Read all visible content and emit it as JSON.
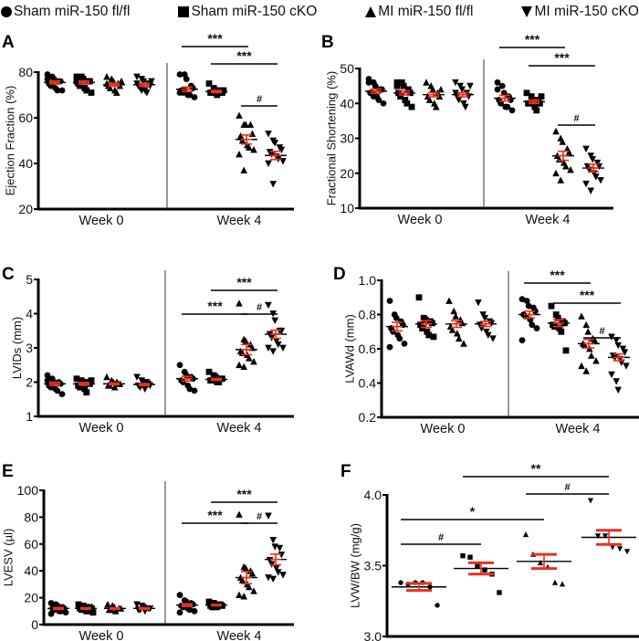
{
  "legend": [
    {
      "label": "Sham miR-150 fl/fl",
      "marker": "circle"
    },
    {
      "label": "Sham miR-150 cKO",
      "marker": "square"
    },
    {
      "label": "MI miR-150 fl/fl",
      "marker": "triangle-up"
    },
    {
      "label": "MI miR-150 cKO",
      "marker": "triangle-down"
    }
  ],
  "colors": {
    "points": "#000000",
    "mean_sem": "#e8321e",
    "mean_line": "#000000"
  },
  "chart_data": [
    {
      "panel": "A",
      "type": "scatter",
      "ylabel": "Ejection Fraction (%)",
      "ylim": [
        20,
        80
      ],
      "yticks": [
        20,
        40,
        60,
        80
      ],
      "xgroups": [
        "Week 0",
        "Week 4"
      ],
      "groups": [
        {
          "marker": "circle",
          "mean": 75.5,
          "sem": 0.7,
          "points": [
            79,
            78,
            77,
            76,
            76,
            75,
            74,
            73,
            72,
            72,
            77,
            74
          ]
        },
        {
          "marker": "square",
          "mean": 75.5,
          "sem": 0.7,
          "points": [
            78,
            77,
            77,
            76,
            76,
            75,
            74,
            73,
            72,
            71,
            76,
            78
          ]
        },
        {
          "marker": "triangle-up",
          "mean": 74.5,
          "sem": 0.7,
          "points": [
            78,
            77,
            76,
            75,
            74,
            74,
            73,
            72,
            71,
            76,
            75
          ]
        },
        {
          "marker": "triangle-down",
          "mean": 74.5,
          "sem": 0.7,
          "points": [
            78,
            77,
            76,
            75,
            74,
            74,
            73,
            72,
            71,
            76,
            75,
            72
          ]
        },
        {
          "marker": "circle",
          "mean": 72.5,
          "sem": 1.0,
          "points": [
            79,
            79,
            77,
            74,
            73,
            72,
            71,
            70,
            70,
            69,
            71,
            72
          ]
        },
        {
          "marker": "square",
          "mean": 71.5,
          "sem": 0.5,
          "points": [
            75,
            73,
            72,
            72,
            71,
            71,
            71,
            70,
            71,
            72
          ]
        },
        {
          "marker": "triangle-up",
          "mean": 50.5,
          "sem": 2.0,
          "points": [
            61,
            57,
            57,
            57,
            53,
            52,
            50,
            48,
            47,
            46,
            44,
            37
          ]
        },
        {
          "marker": "triangle-down",
          "mean": 43.5,
          "sem": 1.8,
          "points": [
            53,
            50,
            49,
            47,
            46,
            45,
            44,
            43,
            42,
            41,
            40,
            31
          ]
        }
      ],
      "brackets": [
        {
          "from": 5,
          "to": 7,
          "label": "***"
        },
        {
          "from": 4,
          "to": 6,
          "label": "***"
        },
        {
          "from": 6,
          "to": 7,
          "label": "#"
        }
      ]
    },
    {
      "panel": "B",
      "type": "scatter",
      "ylabel": "Fractional Shortening (%)",
      "ylim": [
        10,
        50
      ],
      "yticks": [
        10,
        20,
        30,
        40,
        50
      ],
      "xgroups": [
        "Week 0",
        "Week 4"
      ],
      "groups": [
        {
          "marker": "circle",
          "mean": 43.5,
          "sem": 0.6,
          "points": [
            47,
            46,
            45,
            44,
            44,
            43,
            43,
            42,
            41,
            40,
            46,
            42
          ]
        },
        {
          "marker": "square",
          "mean": 43,
          "sem": 0.6,
          "points": [
            46,
            46,
            45,
            44,
            43,
            43,
            42,
            41,
            40,
            39,
            45
          ]
        },
        {
          "marker": "triangle-up",
          "mean": 42.5,
          "sem": 0.6,
          "points": [
            46,
            45,
            44,
            43,
            42,
            42,
            41,
            40,
            39,
            44
          ]
        },
        {
          "marker": "triangle-down",
          "mean": 42.5,
          "sem": 0.6,
          "points": [
            46,
            45,
            44,
            43,
            42,
            42,
            41,
            40,
            39,
            45,
            43
          ]
        },
        {
          "marker": "circle",
          "mean": 41.5,
          "sem": 0.8,
          "points": [
            46,
            45,
            43,
            42,
            41,
            41,
            40,
            39,
            39,
            38,
            44
          ]
        },
        {
          "marker": "square",
          "mean": 40.5,
          "sem": 0.5,
          "points": [
            43,
            42,
            41,
            41,
            40,
            40,
            40,
            39,
            38,
            42
          ]
        },
        {
          "marker": "triangle-up",
          "mean": 25,
          "sem": 1.3,
          "points": [
            32,
            30,
            29,
            27,
            26,
            25,
            24,
            23,
            22,
            21,
            20,
            18
          ]
        },
        {
          "marker": "triangle-down",
          "mean": 21.5,
          "sem": 1.1,
          "points": [
            27,
            25,
            24,
            23,
            22,
            22,
            21,
            20,
            19,
            18,
            17,
            15
          ]
        }
      ],
      "brackets": [
        {
          "from": 5,
          "to": 7,
          "label": "***"
        },
        {
          "from": 4,
          "to": 6,
          "label": "***"
        },
        {
          "from": 6,
          "to": 7,
          "label": "#"
        }
      ]
    },
    {
      "panel": "C",
      "type": "scatter",
      "ylabel": "LVIDs (mm)",
      "ylim": [
        1,
        5
      ],
      "yticks": [
        1,
        2,
        3,
        4,
        5
      ],
      "xgroups": [
        "Week 0",
        "Week 4"
      ],
      "groups": [
        {
          "marker": "circle",
          "mean": 1.95,
          "sem": 0.05,
          "points": [
            2.2,
            2.1,
            2.0,
            2.0,
            1.95,
            1.9,
            1.85,
            1.8,
            1.75,
            1.65,
            2.05
          ]
        },
        {
          "marker": "square",
          "mean": 1.95,
          "sem": 0.04,
          "points": [
            2.1,
            2.05,
            2.0,
            2.0,
            1.95,
            1.9,
            1.85,
            1.8,
            1.7,
            2.05
          ]
        },
        {
          "marker": "triangle-up",
          "mean": 1.95,
          "sem": 0.03,
          "points": [
            2.15,
            2.05,
            2.0,
            1.95,
            1.95,
            1.9,
            1.9,
            1.85,
            2.0
          ]
        },
        {
          "marker": "triangle-down",
          "mean": 1.93,
          "sem": 0.03,
          "points": [
            2.15,
            2.05,
            2.0,
            1.95,
            1.9,
            1.9,
            1.85,
            1.8,
            2.0
          ]
        },
        {
          "marker": "circle",
          "mean": 2.1,
          "sem": 0.07,
          "points": [
            2.5,
            2.3,
            2.2,
            2.15,
            2.1,
            2.05,
            2.0,
            1.9,
            1.8,
            1.75
          ]
        },
        {
          "marker": "square",
          "mean": 2.08,
          "sem": 0.03,
          "points": [
            2.3,
            2.2,
            2.15,
            2.1,
            2.1,
            2.05,
            2.05,
            2.0,
            2.0
          ]
        },
        {
          "marker": "triangle-up",
          "mean": 2.95,
          "sem": 0.15,
          "points": [
            4.3,
            3.25,
            3.2,
            3.1,
            3.0,
            2.9,
            2.85,
            2.8,
            2.7,
            2.6,
            2.5,
            2.45
          ]
        },
        {
          "marker": "triangle-down",
          "mean": 3.4,
          "sem": 0.12,
          "points": [
            4.25,
            4.0,
            3.8,
            3.5,
            3.5,
            3.4,
            3.3,
            3.2,
            3.1,
            3.0,
            3.0,
            2.9
          ]
        }
      ],
      "brackets": [
        {
          "from": 4,
          "to": 6,
          "label": "***"
        },
        {
          "from": 5,
          "to": 7,
          "label": "***"
        },
        {
          "from": 6,
          "to": 7,
          "label": "#"
        }
      ]
    },
    {
      "panel": "D",
      "type": "scatter",
      "ylabel": "LVAWd (mm)",
      "ylim": [
        0.2,
        1.0
      ],
      "yticks": [
        0.2,
        0.4,
        0.6,
        0.8,
        1.0
      ],
      "xgroups": [
        "Week 0",
        "Week 4"
      ],
      "groups": [
        {
          "marker": "circle",
          "mean": 0.73,
          "sem": 0.025,
          "points": [
            0.88,
            0.8,
            0.78,
            0.76,
            0.74,
            0.72,
            0.7,
            0.68,
            0.66,
            0.63,
            0.61
          ]
        },
        {
          "marker": "square",
          "mean": 0.745,
          "sem": 0.02,
          "points": [
            0.9,
            0.78,
            0.77,
            0.76,
            0.75,
            0.74,
            0.72,
            0.7,
            0.68,
            0.67
          ]
        },
        {
          "marker": "triangle-up",
          "mean": 0.745,
          "sem": 0.02,
          "points": [
            0.88,
            0.82,
            0.79,
            0.77,
            0.75,
            0.73,
            0.71,
            0.69,
            0.66,
            0.63
          ]
        },
        {
          "marker": "triangle-down",
          "mean": 0.745,
          "sem": 0.015,
          "points": [
            0.87,
            0.8,
            0.78,
            0.76,
            0.75,
            0.74,
            0.72,
            0.7,
            0.68,
            0.66
          ]
        },
        {
          "marker": "circle",
          "mean": 0.8,
          "sem": 0.02,
          "points": [
            0.89,
            0.88,
            0.85,
            0.84,
            0.82,
            0.8,
            0.79,
            0.77,
            0.74,
            0.72,
            0.65
          ]
        },
        {
          "marker": "square",
          "mean": 0.75,
          "sem": 0.02,
          "points": [
            0.85,
            0.8,
            0.78,
            0.76,
            0.75,
            0.74,
            0.73,
            0.72,
            0.7,
            0.59
          ]
        },
        {
          "marker": "triangle-up",
          "mean": 0.63,
          "sem": 0.025,
          "points": [
            0.79,
            0.74,
            0.7,
            0.66,
            0.65,
            0.63,
            0.62,
            0.6,
            0.56,
            0.53,
            0.5,
            0.47
          ]
        },
        {
          "marker": "triangle-down",
          "mean": 0.55,
          "sem": 0.02,
          "points": [
            0.67,
            0.65,
            0.62,
            0.6,
            0.58,
            0.56,
            0.55,
            0.54,
            0.52,
            0.5,
            0.45,
            0.41,
            0.36
          ]
        }
      ],
      "brackets": [
        {
          "from": 5,
          "to": 7,
          "label": "***"
        },
        {
          "from": 4,
          "to": 6,
          "label": "***"
        },
        {
          "from": 6,
          "to": 7,
          "label": "#"
        }
      ]
    },
    {
      "panel": "E",
      "type": "scatter",
      "ylabel": "LVESV (µl)",
      "ylim": [
        0,
        100
      ],
      "yticks": [
        0,
        20,
        40,
        60,
        80,
        100
      ],
      "xgroups": [
        "Week 0",
        "Week 4"
      ],
      "groups": [
        {
          "marker": "circle",
          "mean": 12,
          "sem": 0.7,
          "points": [
            16,
            15,
            14,
            13,
            12,
            12,
            11,
            10,
            10,
            9,
            8
          ]
        },
        {
          "marker": "square",
          "mean": 12,
          "sem": 0.6,
          "points": [
            15,
            14,
            13,
            13,
            12,
            12,
            11,
            10,
            10,
            9
          ]
        },
        {
          "marker": "triangle-up",
          "mean": 12,
          "sem": 0.6,
          "points": [
            15,
            14,
            13,
            12,
            12,
            11,
            11,
            10
          ]
        },
        {
          "marker": "triangle-down",
          "mean": 12,
          "sem": 0.6,
          "points": [
            15,
            14,
            13,
            12,
            12,
            11,
            11,
            10
          ]
        },
        {
          "marker": "circle",
          "mean": 14.5,
          "sem": 1.1,
          "points": [
            22,
            18,
            17,
            16,
            15,
            14,
            13,
            12,
            11,
            10,
            9
          ]
        },
        {
          "marker": "square",
          "mean": 14.5,
          "sem": 0.5,
          "points": [
            17,
            16,
            15,
            15,
            14,
            14,
            13,
            13
          ]
        },
        {
          "marker": "triangle-up",
          "mean": 35,
          "sem": 4.5,
          "points": [
            82,
            43,
            42,
            40,
            38,
            35,
            33,
            30,
            28,
            25,
            22,
            21
          ]
        },
        {
          "marker": "triangle-down",
          "mean": 48.5,
          "sem": 4.0,
          "points": [
            81,
            63,
            58,
            57,
            52,
            48,
            45,
            42,
            39,
            37,
            35,
            34
          ]
        }
      ],
      "brackets": [
        {
          "from": 4,
          "to": 6,
          "label": "***"
        },
        {
          "from": 5,
          "to": 7,
          "label": "***"
        },
        {
          "from": 6,
          "to": 7,
          "label": "#"
        }
      ]
    },
    {
      "panel": "F",
      "type": "scatter",
      "ylabel": "LVW/BW (mg/g)",
      "ylim": [
        3.0,
        4.0
      ],
      "yticks": [
        3.0,
        3.5,
        4.0
      ],
      "xgroups": [],
      "groups": [
        {
          "marker": "circle",
          "mean": 3.35,
          "sem": 0.025,
          "points": [
            3.38,
            3.37,
            3.38,
            3.38,
            3.35,
            3.22
          ]
        },
        {
          "marker": "square",
          "mean": 3.48,
          "sem": 0.04,
          "points": [
            3.57,
            3.56,
            3.5,
            3.47,
            3.44,
            3.31
          ]
        },
        {
          "marker": "triangle-up",
          "mean": 3.53,
          "sem": 0.05,
          "points": [
            3.72,
            3.58,
            3.52,
            3.49,
            3.38,
            3.37
          ]
        },
        {
          "marker": "triangle-down",
          "mean": 3.7,
          "sem": 0.05,
          "points": [
            3.96,
            3.71,
            3.71,
            3.63,
            3.62,
            3.6
          ]
        }
      ],
      "brackets": [
        {
          "from": 1,
          "to": 3,
          "label": "**"
        },
        {
          "from": 2,
          "to": 3,
          "label": "#"
        },
        {
          "from": 0,
          "to": 2,
          "label": "*"
        },
        {
          "from": 0,
          "to": 1,
          "label": "#"
        }
      ]
    }
  ]
}
